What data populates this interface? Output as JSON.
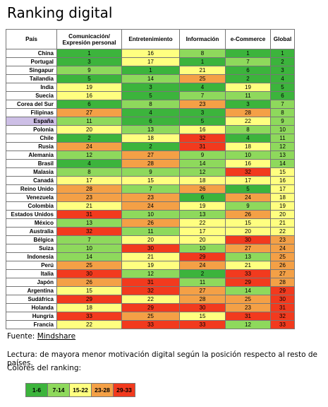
{
  "title": "Ranking digital",
  "colors": {
    "c1": "#3cb43c",
    "c2": "#8ed95c",
    "c3": "#ffff80",
    "c4": "#f4a046",
    "c5": "#f23a1e"
  },
  "chart_data": {
    "type": "table",
    "columns": [
      "País",
      "Comunicación/ Expresión personal",
      "Entretenimiento",
      "Información",
      "e-Commerce",
      "Global"
    ],
    "rows": [
      {
        "country": "China",
        "values": [
          1,
          16,
          8,
          1,
          1
        ]
      },
      {
        "country": "Portugal",
        "values": [
          3,
          17,
          1,
          7,
          2
        ]
      },
      {
        "country": "Singapur",
        "values": [
          9,
          1,
          21,
          6,
          3
        ]
      },
      {
        "country": "Tailandia",
        "values": [
          5,
          14,
          25,
          2,
          4
        ]
      },
      {
        "country": "India",
        "values": [
          19,
          3,
          4,
          19,
          5
        ]
      },
      {
        "country": "Suecia",
        "values": [
          16,
          5,
          7,
          11,
          6
        ]
      },
      {
        "country": "Corea del Sur",
        "values": [
          6,
          8,
          23,
          3,
          7
        ]
      },
      {
        "country": "Filipinas",
        "values": [
          27,
          4,
          3,
          28,
          8
        ]
      },
      {
        "country": "España",
        "values": [
          11,
          6,
          5,
          22,
          9
        ],
        "highlight": true
      },
      {
        "country": "Polonia",
        "values": [
          20,
          13,
          16,
          8,
          10
        ]
      },
      {
        "country": "Chile",
        "values": [
          2,
          18,
          32,
          4,
          11
        ]
      },
      {
        "country": "Rusia",
        "values": [
          24,
          2,
          31,
          18,
          12
        ]
      },
      {
        "country": "Alemania",
        "values": [
          12,
          27,
          9,
          10,
          13
        ]
      },
      {
        "country": "Brasil",
        "values": [
          4,
          28,
          14,
          16,
          14
        ]
      },
      {
        "country": "Malasia",
        "values": [
          8,
          9,
          12,
          32,
          15
        ]
      },
      {
        "country": "Canadá",
        "values": [
          17,
          15,
          18,
          17,
          16
        ]
      },
      {
        "country": "Reino Unido",
        "values": [
          28,
          7,
          26,
          5,
          17
        ]
      },
      {
        "country": "Venezuela",
        "values": [
          23,
          23,
          6,
          24,
          18
        ]
      },
      {
        "country": "Colombia",
        "values": [
          21,
          24,
          19,
          9,
          19
        ]
      },
      {
        "country": "Estados Unidos",
        "values": [
          31,
          10,
          13,
          26,
          20
        ]
      },
      {
        "country": "México",
        "values": [
          13,
          26,
          22,
          15,
          21
        ]
      },
      {
        "country": "Australia",
        "values": [
          32,
          11,
          17,
          20,
          22
        ]
      },
      {
        "country": "Bélgica",
        "values": [
          7,
          20,
          20,
          30,
          23
        ]
      },
      {
        "country": "Suiza",
        "values": [
          10,
          30,
          10,
          27,
          24
        ]
      },
      {
        "country": "Indonesia",
        "values": [
          14,
          21,
          29,
          13,
          25
        ]
      },
      {
        "country": "Perú",
        "values": [
          25,
          19,
          24,
          21,
          26
        ]
      },
      {
        "country": "Italia",
        "values": [
          30,
          12,
          2,
          33,
          27
        ]
      },
      {
        "country": "Japón",
        "values": [
          26,
          31,
          11,
          29,
          28
        ]
      },
      {
        "country": "Argentina",
        "values": [
          15,
          32,
          27,
          14,
          29
        ]
      },
      {
        "country": "Sudáfrica",
        "values": [
          29,
          22,
          28,
          25,
          30
        ]
      },
      {
        "country": "Holanda",
        "values": [
          18,
          29,
          30,
          23,
          31
        ]
      },
      {
        "country": "Hungría",
        "values": [
          33,
          25,
          15,
          31,
          32
        ]
      },
      {
        "country": "Francia",
        "values": [
          22,
          33,
          33,
          12,
          33
        ]
      }
    ]
  },
  "footer": {
    "fuente_label": "Fuente:",
    "fuente_source": "Mindshare",
    "lectura": "Lectura: de mayora menor motivación digital según la posición respecto al resto de países.",
    "colores_label": "Colores del ranking:"
  },
  "legend": [
    {
      "label": "1-6",
      "min": 1,
      "max": 6
    },
    {
      "label": "7-14",
      "min": 7,
      "max": 14
    },
    {
      "label": "15-22",
      "min": 15,
      "max": 22
    },
    {
      "label": "23-28",
      "min": 23,
      "max": 28
    },
    {
      "label": "29-33",
      "min": 29,
      "max": 33
    }
  ]
}
